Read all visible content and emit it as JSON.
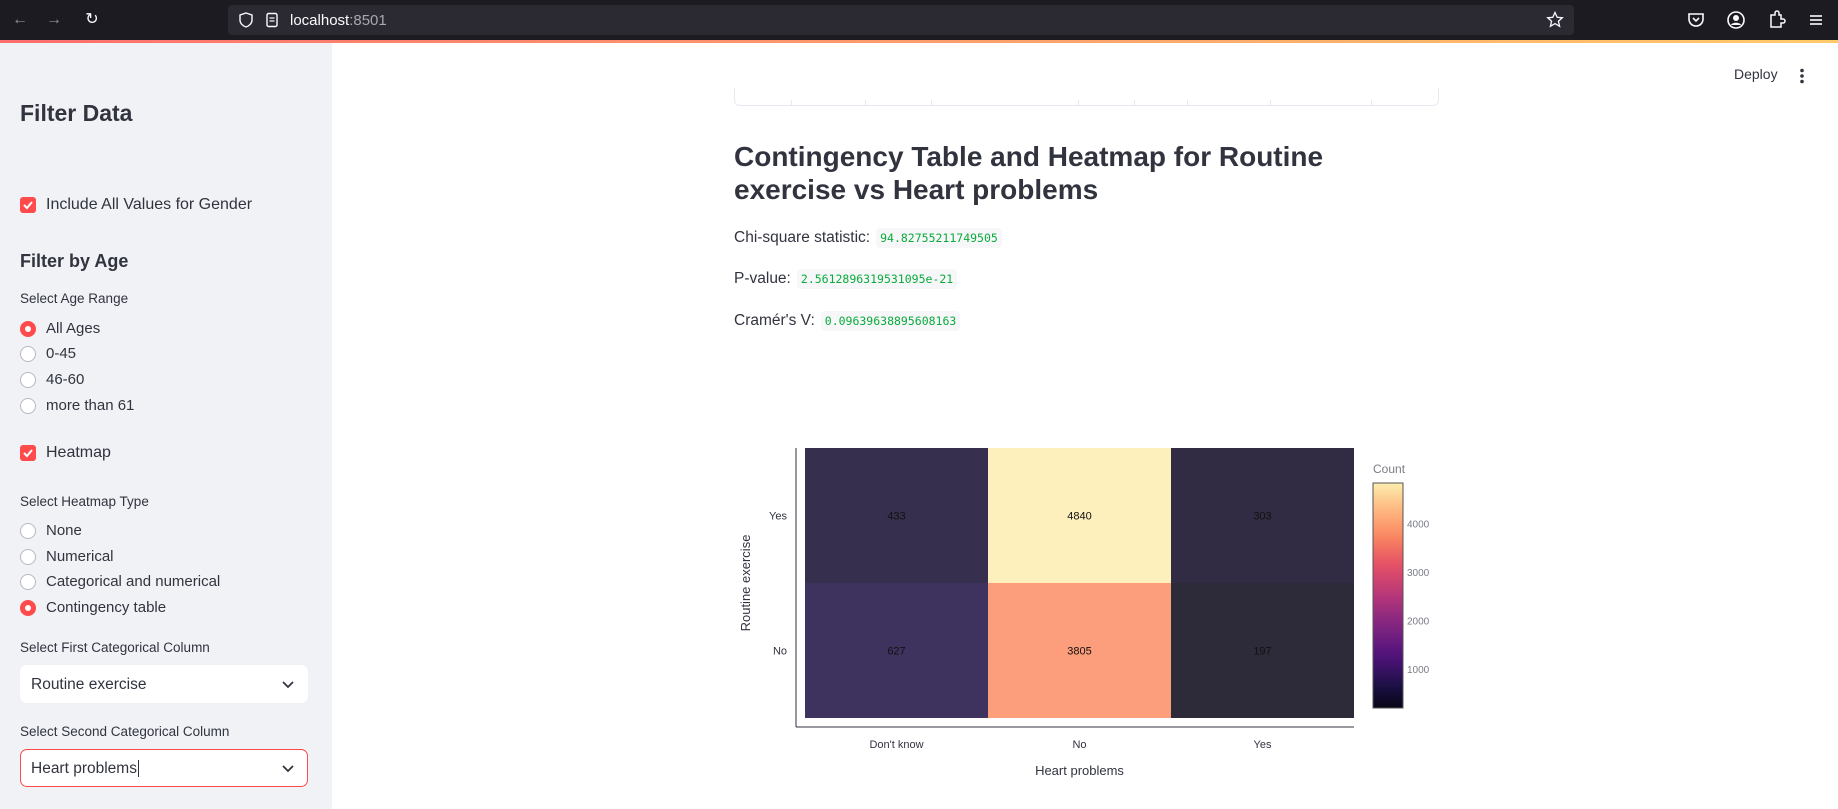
{
  "browser": {
    "url_host": "localhost",
    "url_port": ":8501"
  },
  "sidebar": {
    "title": "Filter Data",
    "include_all_gender": "Include All Values for Gender",
    "filter_by_age": "Filter by Age",
    "select_age_range_label": "Select Age Range",
    "age_options": [
      "All Ages",
      "0-45",
      "46-60",
      "more than 61"
    ],
    "age_selected": 0,
    "heatmap_checkbox": "Heatmap",
    "heatmap_type_label": "Select Heatmap Type",
    "heatmap_types": [
      "None",
      "Numerical",
      "Categorical and numerical",
      "Contingency table"
    ],
    "heatmap_type_selected": 3,
    "first_col_label": "Select First Categorical Column",
    "first_col_value": "Routine exercise",
    "second_col_label": "Select Second Categorical Column",
    "second_col_value": "Heart problems"
  },
  "header": {
    "deploy": "Deploy"
  },
  "main": {
    "title": "Contingency Table and Heatmap for Routine exercise vs Heart problems",
    "chi_label": "Chi-square statistic:",
    "chi_value": "94.82755211749505",
    "p_label": "P-value:",
    "p_value": "2.5612896319531095e-21",
    "v_label": "Cramér's V:",
    "v_value": "0.09639638895608163"
  },
  "colors": {
    "accent": "#ff4b4b",
    "code_green": "#09ab3b"
  },
  "chart_data": {
    "type": "heatmap",
    "title": "",
    "xlabel": "Heart problems",
    "ylabel": "Routine exercise",
    "x_categories": [
      "Don't know",
      "No",
      "Yes"
    ],
    "y_categories": [
      "Yes",
      "No"
    ],
    "values": [
      [
        433,
        4840,
        303
      ],
      [
        627,
        3805,
        197
      ]
    ],
    "colorbar_title": "Count",
    "colorbar_ticks": [
      1000,
      2000,
      3000,
      4000
    ],
    "colorscale": "magma",
    "zrange": [
      197,
      4840
    ]
  }
}
